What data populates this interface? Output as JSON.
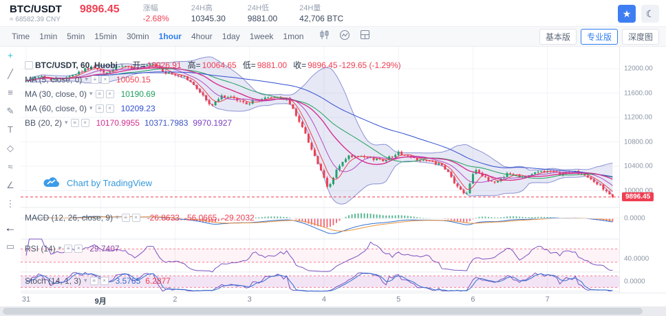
{
  "header": {
    "symbol": "BTC/USDT",
    "cny_approx": "≈ 68582.39 CNY",
    "price": "9896.45",
    "stats": [
      {
        "label": "涨幅",
        "value": "-2.68%",
        "red": true
      },
      {
        "label": "24H高",
        "value": "10345.30",
        "red": false
      },
      {
        "label": "24H低",
        "value": "9881.00",
        "red": false
      },
      {
        "label": "24H量",
        "value": "42,706 BTC",
        "red": false
      }
    ],
    "favorite_icon": "★",
    "theme_icon": "☾"
  },
  "toolbar": {
    "intervals": [
      "Time",
      "1min",
      "5min",
      "15min",
      "30min",
      "1hour",
      "4hour",
      "1day",
      "1week",
      "1mon"
    ],
    "active_interval": "1hour",
    "icon_names": [
      "kline-style-icon",
      "indicators-icon",
      "layout-icon"
    ],
    "views": [
      "基本版",
      "专业版",
      "深度图"
    ],
    "active_view": "专业版"
  },
  "tools": [
    {
      "name": "crosshair-icon",
      "glyph": "+",
      "active": true,
      "strong": false
    },
    {
      "name": "trend-line-icon",
      "glyph": "╱",
      "active": false,
      "strong": false
    },
    {
      "name": "fib-retracement-icon",
      "glyph": "≡",
      "active": false,
      "strong": false
    },
    {
      "name": "brush-icon",
      "glyph": "✎",
      "active": false,
      "strong": false
    },
    {
      "name": "text-tool-icon",
      "glyph": "T",
      "active": false,
      "strong": false
    },
    {
      "name": "shapes-icon",
      "glyph": "◇",
      "active": false,
      "strong": false
    },
    {
      "name": "wave-pattern-icon",
      "glyph": "≈",
      "active": false,
      "strong": false
    },
    {
      "name": "measure-icon",
      "glyph": "∠",
      "active": false,
      "strong": false
    },
    {
      "name": "more-tools-icon",
      "glyph": "⋮",
      "active": false,
      "strong": false
    },
    {
      "name": "back-arrow-icon",
      "glyph": "←",
      "active": false,
      "strong": true
    },
    {
      "name": "eraser-icon",
      "glyph": "▭",
      "active": false,
      "strong": false
    }
  ],
  "legend": {
    "title": "BTC/USDT, 60, Huobi",
    "ohlc": [
      {
        "label": "开=",
        "value": "10026.91"
      },
      {
        "label": "高=",
        "value": "10064.65"
      },
      {
        "label": "低=",
        "value": "9881.00"
      },
      {
        "label": "收=",
        "value": "9896.45"
      },
      {
        "label": "",
        "value": "-129.65 (-1.29%)"
      }
    ],
    "indicators": [
      {
        "name": "MA (5, close, 0)",
        "values": [
          {
            "text": "10050.15",
            "color": "#ec4053"
          }
        ]
      },
      {
        "name": "MA (30, close, 0)",
        "values": [
          {
            "text": "10190.69",
            "color": "#1fa05c"
          }
        ]
      },
      {
        "name": "MA (60, close, 0)",
        "values": [
          {
            "text": "10209.23",
            "color": "#2f4ecf"
          }
        ]
      },
      {
        "name": "BB (20, 2)",
        "values": [
          {
            "text": "10170.9955",
            "color": "#d2308f"
          },
          {
            "text": "10371.7983",
            "color": "#3a52c4"
          },
          {
            "text": "9970.1927",
            "color": "#7b3fc4"
          }
        ]
      }
    ]
  },
  "panels": [
    {
      "name": "MACD (12, 26, close, 9)",
      "values": [
        {
          "text": "-26.8633",
          "color": "#ec4053"
        },
        {
          "text": "-56.0665",
          "color": "#ec4053"
        },
        {
          "text": "-29.2032",
          "color": "#ec4053"
        }
      ]
    },
    {
      "name": "RSI (14)",
      "values": [
        {
          "text": "29.7407",
          "color": "#8e44ad"
        }
      ]
    },
    {
      "name": "Stoch (14, 1, 3)",
      "values": [
        {
          "text": "3.5765",
          "color": "#2f6fd0"
        },
        {
          "text": "6.2877",
          "color": "#ec4053"
        }
      ]
    }
  ],
  "attribution": "Chart by TradingView",
  "axis": {
    "price_ticks": [
      "12000.00",
      "11600.00",
      "11200.00",
      "10800.00",
      "10400.00",
      "10000.00"
    ],
    "last_price": "9896.45",
    "sub_ticks": [
      "0.0000",
      "40.0000",
      "0.0000"
    ],
    "x_labels": [
      "31",
      "9月",
      "2",
      "3",
      "4",
      "5",
      "6",
      "7"
    ]
  },
  "chart_data": {
    "type": "candlestick",
    "symbol": "BTC/USDT",
    "interval_minutes": 60,
    "exchange": "Huobi",
    "last_price": 9896.45,
    "price_range_visible": [
      9850,
      12170
    ],
    "anchors": [
      [
        0.0,
        11800
      ],
      [
        0.02,
        11880
      ],
      [
        0.05,
        11820
      ],
      [
        0.08,
        11900
      ],
      [
        0.11,
        12030
      ],
      [
        0.135,
        11920
      ],
      [
        0.16,
        12040
      ],
      [
        0.19,
        12000
      ],
      [
        0.215,
        12070
      ],
      [
        0.24,
        11920
      ],
      [
        0.27,
        11870
      ],
      [
        0.295,
        11640
      ],
      [
        0.315,
        11380
      ],
      [
        0.335,
        11560
      ],
      [
        0.355,
        11500
      ],
      [
        0.375,
        11430
      ],
      [
        0.4,
        11500
      ],
      [
        0.425,
        11540
      ],
      [
        0.445,
        11500
      ],
      [
        0.465,
        11160
      ],
      [
        0.48,
        10840
      ],
      [
        0.5,
        10380
      ],
      [
        0.515,
        10020
      ],
      [
        0.53,
        10360
      ],
      [
        0.55,
        10560
      ],
      [
        0.58,
        10540
      ],
      [
        0.61,
        10500
      ],
      [
        0.635,
        10620
      ],
      [
        0.66,
        10530
      ],
      [
        0.685,
        10480
      ],
      [
        0.705,
        10430
      ],
      [
        0.72,
        10290
      ],
      [
        0.735,
        10060
      ],
      [
        0.75,
        9930
      ],
      [
        0.765,
        10380
      ],
      [
        0.78,
        10210
      ],
      [
        0.8,
        10130
      ],
      [
        0.82,
        10280
      ],
      [
        0.85,
        10230
      ],
      [
        0.88,
        10330
      ],
      [
        0.91,
        10270
      ],
      [
        0.935,
        10320
      ],
      [
        0.965,
        10170
      ],
      [
        0.985,
        10030
      ],
      [
        1.0,
        9896.45
      ]
    ]
  },
  "colors": {
    "up": "#23a06d",
    "down": "#ec4053",
    "accent": "#2f7df0",
    "red": "#ef3e52",
    "bb_fill": "rgba(103,110,190,0.16)",
    "bb_line": "#7079c9",
    "bb_mid": "#d2308f",
    "ma5": "#ec4053",
    "ma10": "#b04ac2",
    "ma30": "#1fa05c",
    "ma60": "#2f4ecf",
    "rsi": "#7b51c1",
    "stoch_k": "#7b51c1",
    "stoch_d": "#2f6fd0",
    "macd_dif": "#2f6fd0",
    "macd_dea": "#e8913d"
  }
}
